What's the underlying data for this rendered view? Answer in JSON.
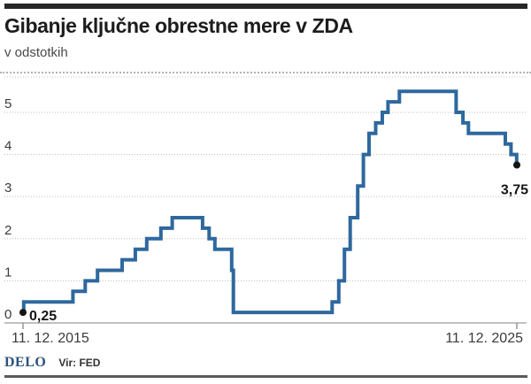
{
  "header": {
    "title": "Gibanje ključne obrestne mere v ZDA",
    "subtitle": "v odstotkih"
  },
  "footer": {
    "brand": "DELO",
    "source": "Vir: FED"
  },
  "chart_data": {
    "type": "line",
    "subtype": "step-after",
    "title": "Gibanje ključne obrestne mere v ZDA",
    "units_label": "v odstotkih",
    "grid": "dotted horizontal gridlines, no vertical axis line",
    "legend": "none",
    "line_color": "#2e689e",
    "marker_color": "#141414",
    "x_range_dates": [
      "2015-12-11",
      "2025-12-11"
    ],
    "x_tick_labels": [
      "11. 12. 2015",
      "11. 12. 2025"
    ],
    "ylim": [
      0,
      5.5
    ],
    "y_ticks": [
      0,
      1,
      2,
      3,
      4,
      5
    ],
    "start_label": "0,25",
    "end_label": "3,75",
    "points": [
      {
        "date": "2015-12-11",
        "value": 0.25
      },
      {
        "date": "2015-12-16",
        "value": 0.5
      },
      {
        "date": "2016-12-14",
        "value": 0.75
      },
      {
        "date": "2017-03-15",
        "value": 1.0
      },
      {
        "date": "2017-06-14",
        "value": 1.25
      },
      {
        "date": "2017-12-13",
        "value": 1.5
      },
      {
        "date": "2018-03-21",
        "value": 1.75
      },
      {
        "date": "2018-06-13",
        "value": 2.0
      },
      {
        "date": "2018-09-26",
        "value": 2.25
      },
      {
        "date": "2018-12-19",
        "value": 2.5
      },
      {
        "date": "2019-07-31",
        "value": 2.25
      },
      {
        "date": "2019-09-18",
        "value": 2.0
      },
      {
        "date": "2019-10-30",
        "value": 1.75
      },
      {
        "date": "2020-03-03",
        "value": 1.25
      },
      {
        "date": "2020-03-15",
        "value": 0.25
      },
      {
        "date": "2022-03-16",
        "value": 0.5
      },
      {
        "date": "2022-05-04",
        "value": 1.0
      },
      {
        "date": "2022-06-15",
        "value": 1.75
      },
      {
        "date": "2022-07-27",
        "value": 2.5
      },
      {
        "date": "2022-09-21",
        "value": 3.25
      },
      {
        "date": "2022-11-02",
        "value": 4.0
      },
      {
        "date": "2022-12-14",
        "value": 4.5
      },
      {
        "date": "2023-02-01",
        "value": 4.75
      },
      {
        "date": "2023-03-22",
        "value": 5.0
      },
      {
        "date": "2023-05-03",
        "value": 5.25
      },
      {
        "date": "2023-07-26",
        "value": 5.5
      },
      {
        "date": "2024-09-18",
        "value": 5.0
      },
      {
        "date": "2024-11-07",
        "value": 4.75
      },
      {
        "date": "2024-12-18",
        "value": 4.5
      },
      {
        "date": "2025-09-17",
        "value": 4.25
      },
      {
        "date": "2025-10-29",
        "value": 4.0
      },
      {
        "date": "2025-12-10",
        "value": 3.75
      }
    ]
  }
}
